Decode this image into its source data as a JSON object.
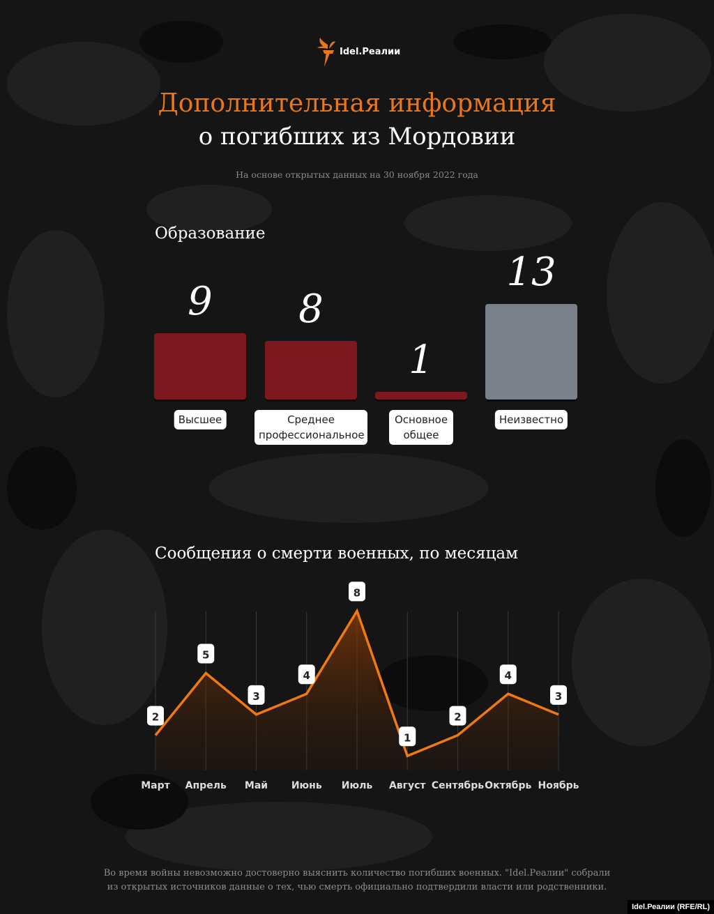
{
  "logo": {
    "text": "Idel.Реалии",
    "color": "#e8761a"
  },
  "header": {
    "title_line1": "Дополнительная информация",
    "title_line2": "о погибших из Мордовии",
    "subtitle": "На основе открытых данных на 30 ноября 2022 года"
  },
  "chart_data": [
    {
      "type": "bar",
      "title": "Образование",
      "categories": [
        "Высшее",
        "Среднее профессиональное",
        "Основное общее",
        "Неизвестно"
      ],
      "values": [
        9,
        8,
        1,
        13
      ],
      "colors": [
        "#7d1820",
        "#7d1820",
        "#7d1820",
        "#7b818a"
      ]
    },
    {
      "type": "area",
      "title": "Сообщения о смерти военных, по месяцам",
      "categories": [
        "Март",
        "Апрель",
        "Май",
        "Июнь",
        "Июль",
        "Август",
        "Сентябрь",
        "Октябрь",
        "Ноябрь"
      ],
      "values": [
        2,
        5,
        3,
        4,
        8,
        1,
        2,
        4,
        3
      ],
      "line_color": "#f07a10",
      "grid": "vertical"
    }
  ],
  "footer": {
    "note_line1": "Во время войны невозможно достоверно выяснить количество погибших военных. \"Idel.Реалии\" собрали",
    "note_line2": "из открытых источников данные о тех, чью смерть официально подтвердили власти или родственники.",
    "credit": "Idel.Реалии (RFE/RL)"
  }
}
